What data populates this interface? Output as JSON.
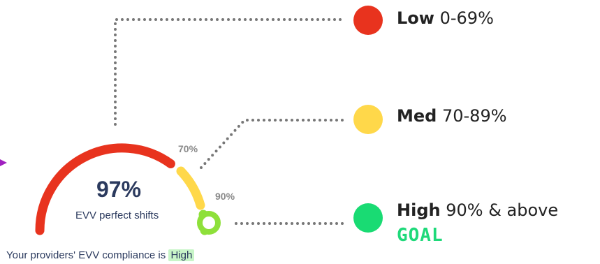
{
  "gauge": {
    "value_pct": 97,
    "value_label": "97%",
    "caption": "EVV perfect shifts",
    "tick_70": "70%",
    "tick_90": "90%"
  },
  "footer": {
    "text": "Your providers' EVV compliance is",
    "level": "High"
  },
  "legend": {
    "low": {
      "name": "Low",
      "range": "0-69%",
      "color": "#e8331e"
    },
    "med": {
      "name": "Med",
      "range": "70-89%",
      "color": "#ffd84a"
    },
    "high": {
      "name": "High",
      "range": "90% & above",
      "color": "#19db73",
      "goal": "GOAL"
    }
  }
}
